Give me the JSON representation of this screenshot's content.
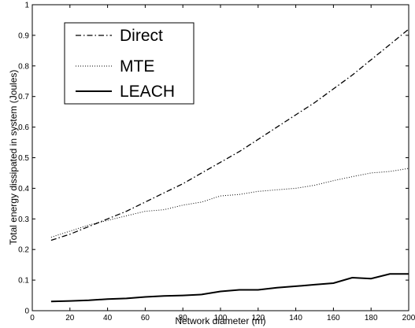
{
  "chart_data": {
    "type": "line",
    "title": "",
    "xlabel": "Network diameter (m)",
    "ylabel": "Total energy dissipated in system (Joules)",
    "xlim": [
      0,
      200
    ],
    "ylim": [
      0,
      1
    ],
    "xticks": [
      0,
      20,
      40,
      60,
      80,
      100,
      120,
      140,
      160,
      180,
      200
    ],
    "yticks": [
      0,
      0.1,
      0.2,
      0.3,
      0.4,
      0.5,
      0.6,
      0.7,
      0.8,
      0.9,
      1
    ],
    "xtick_labels": [
      "0",
      "20",
      "40",
      "60",
      "80",
      "100",
      "120",
      "140",
      "160",
      "180",
      "200"
    ],
    "ytick_labels": [
      "0",
      "0.1",
      "0.2",
      "0.3",
      "0.4",
      "0.5",
      "0.6",
      "0.7",
      "0.8",
      "0.9",
      "1"
    ],
    "grid": false,
    "legend_position": "top-left",
    "x": [
      10,
      20,
      30,
      40,
      50,
      60,
      70,
      80,
      90,
      100,
      110,
      120,
      130,
      140,
      150,
      160,
      170,
      180,
      190,
      200
    ],
    "series": [
      {
        "name": "Direct",
        "style": "dash-dot",
        "color": "#000000",
        "values": [
          0.23,
          0.25,
          0.275,
          0.3,
          0.325,
          0.355,
          0.385,
          0.415,
          0.45,
          0.485,
          0.52,
          0.56,
          0.6,
          0.64,
          0.68,
          0.725,
          0.77,
          0.82,
          0.87,
          0.92
        ]
      },
      {
        "name": "MTE",
        "style": "dotted",
        "color": "#000000",
        "values": [
          0.24,
          0.26,
          0.28,
          0.295,
          0.31,
          0.325,
          0.33,
          0.345,
          0.355,
          0.375,
          0.38,
          0.39,
          0.395,
          0.4,
          0.41,
          0.425,
          0.438,
          0.45,
          0.455,
          0.465
        ]
      },
      {
        "name": "LEACH",
        "style": "solid",
        "color": "#000000",
        "values": [
          0.03,
          0.032,
          0.034,
          0.038,
          0.04,
          0.045,
          0.048,
          0.05,
          0.053,
          0.063,
          0.068,
          0.068,
          0.075,
          0.08,
          0.085,
          0.09,
          0.108,
          0.105,
          0.12,
          0.12
        ]
      }
    ]
  }
}
